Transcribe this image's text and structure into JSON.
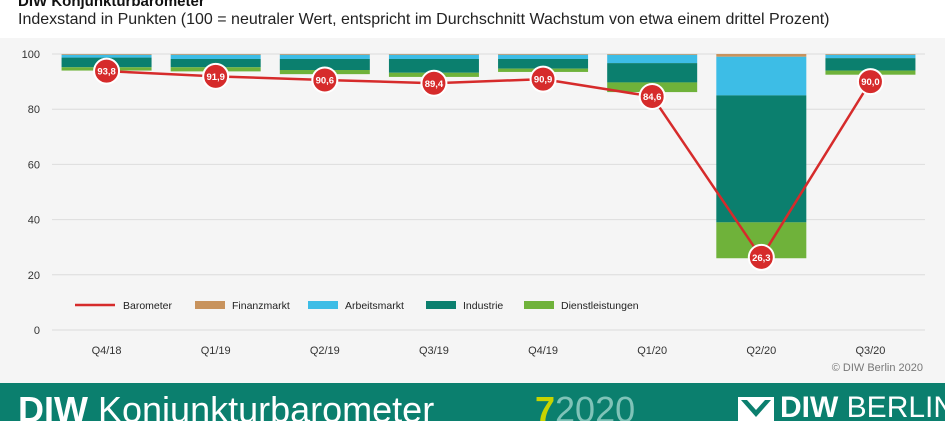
{
  "header": {
    "title": "DIW Konjunkturbarometer",
    "subtitle": "Indexstand in Punkten (100 = neutraler Wert, entspricht im Durchschnitt Wachstum von etwa einem drittel Prozent)"
  },
  "copyright": "© DIW Berlin 2020",
  "footer": {
    "brand_bold": "DIW",
    "brand_title": "Konjunkturbarometer",
    "issue_number": "7",
    "issue_year": "2020",
    "logo_bold": "DIW",
    "logo_text": "BERLIN"
  },
  "colors": {
    "barometer": "#d62b2b",
    "finanzmarkt": "#c8935d",
    "arbeitsmarkt": "#3dbde6",
    "industrie": "#0b7f6e",
    "dienstleistungen": "#6fb23a",
    "footer_bg": "#0b7f6e",
    "issue_number": "#c8d400"
  },
  "chart_data": {
    "type": "bar",
    "categories": [
      "Q4/18",
      "Q1/19",
      "Q2/19",
      "Q3/19",
      "Q4/19",
      "Q1/20",
      "Q2/20",
      "Q3/20"
    ],
    "ylim": [
      0,
      100
    ],
    "yticks": [
      "0",
      "20",
      "40",
      "60",
      "80",
      "100"
    ],
    "grid": true,
    "legend_position": "bottom-left",
    "stacked_bars": [
      {
        "name": "Finanzmarkt",
        "color": "#c8935d",
        "values": [
          0.3,
          0.3,
          0.3,
          0.3,
          0.3,
          0.3,
          1.0,
          0.3
        ]
      },
      {
        "name": "Arbeitsmarkt",
        "color": "#3dbde6",
        "values": [
          1.0,
          1.5,
          1.5,
          1.5,
          1.5,
          3.0,
          14.0,
          1.2
        ]
      },
      {
        "name": "Industrie",
        "color": "#0b7f6e",
        "values": [
          3.5,
          3.0,
          4.0,
          5.0,
          3.5,
          7.0,
          46.0,
          4.5
        ]
      },
      {
        "name": "Dienstleistungen",
        "color": "#6fb23a",
        "values": [
          1.2,
          1.5,
          1.5,
          1.5,
          1.2,
          3.5,
          13.0,
          1.5
        ]
      }
    ],
    "barometer": {
      "name": "Barometer",
      "color": "#d62b2b",
      "values": [
        93.8,
        91.9,
        90.6,
        89.4,
        90.9,
        84.6,
        26.3,
        90.0
      ],
      "labels": [
        "93,8",
        "91,9",
        "90,6",
        "89,4",
        "90,9",
        "84,6",
        "26,3",
        "90,0"
      ]
    },
    "legend": [
      {
        "name": "Barometer",
        "type": "line",
        "color": "#d62b2b"
      },
      {
        "name": "Finanzmarkt",
        "type": "box",
        "color": "#c8935d"
      },
      {
        "name": "Arbeitsmarkt",
        "type": "box",
        "color": "#3dbde6"
      },
      {
        "name": "Industrie",
        "type": "box",
        "color": "#0b7f6e"
      },
      {
        "name": "Dienstleistungen",
        "type": "box",
        "color": "#6fb23a"
      }
    ]
  }
}
